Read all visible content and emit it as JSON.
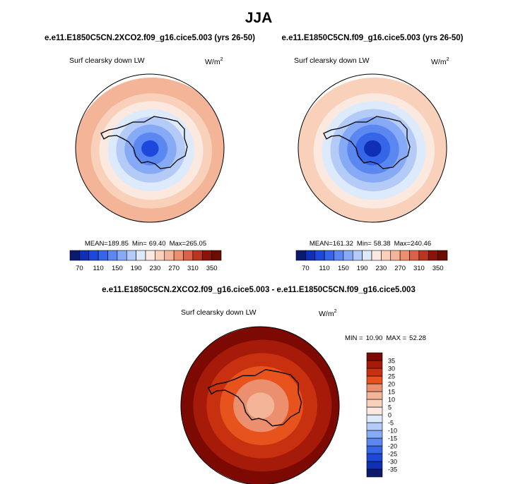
{
  "figure": {
    "season": "JJA",
    "panels": [
      {
        "id": "exp",
        "title": "e.e11.E1850C5CN.2XCO2.f09_g16.cice5.003 (yrs 26-50)",
        "variable": "Surf clearsky down LW",
        "units_base": "W/m",
        "units_exp": "2",
        "stats": {
          "mean_label": "MEAN=",
          "mean": "189.85",
          "min_label": "Min=",
          "min": "69.40",
          "max_label": "Max=",
          "max": "265.05"
        }
      },
      {
        "id": "ctl",
        "title": "e.e11.E1850C5CN.f09_g16.cice5.003 (yrs 26-50)",
        "variable": "Surf clearsky down LW",
        "units_base": "W/m",
        "units_exp": "2",
        "stats": {
          "mean_label": "MEAN=",
          "mean": "161.32",
          "min_label": "Min=",
          "min": "58.38",
          "max_label": "Max=",
          "max": "240.46"
        }
      },
      {
        "id": "diff",
        "title": "e.e11.E1850C5CN.2XCO2.f09_g16.cice5.003 - e.e11.E1850C5CN.f09_g16.cice5.003",
        "variable": "Surf clearsky down LW",
        "units_base": "W/m",
        "units_exp": "2",
        "stats": {
          "min_label": "MIN =",
          "min": "10.90",
          "max_label": "MAX =",
          "max": "52.28"
        }
      }
    ]
  },
  "chart_data": [
    {
      "type": "heatmap",
      "projection": "south-polar-stereographic",
      "title": "e.e11.E1850C5CN.2XCO2.f09_g16.cice5.003 (yrs 26-50)",
      "variable": "Surf clearsky down LW",
      "units": "W/m2",
      "mean": 189.85,
      "min": 69.4,
      "max": 265.05,
      "colorbar": {
        "orientation": "horizontal",
        "levels": [
          70,
          90,
          110,
          130,
          150,
          170,
          190,
          210,
          230,
          250,
          270,
          290,
          310,
          330,
          350
        ],
        "tick_labels": [
          "70",
          "110",
          "150",
          "190",
          "230",
          "270",
          "310",
          "350"
        ],
        "colors": [
          "#0a1a6e",
          "#0f2fb4",
          "#1e48dc",
          "#3566e8",
          "#5a88f0",
          "#86aaf5",
          "#b4cbf8",
          "#ddeafb",
          "#fbe9df",
          "#f9d1bb",
          "#f3b497",
          "#eb8f6e",
          "#d8634a",
          "#b8361f",
          "#8b1408",
          "#6c0d05"
        ]
      },
      "rings_wm2": [
        95,
        130,
        150,
        170,
        190,
        210,
        230,
        250,
        262
      ]
    },
    {
      "type": "heatmap",
      "projection": "south-polar-stereographic",
      "title": "e.e11.E1850C5CN.f09_g16.cice5.003 (yrs 26-50)",
      "variable": "Surf clearsky down LW",
      "units": "W/m2",
      "mean": 161.32,
      "min": 58.38,
      "max": 240.46,
      "colorbar": {
        "orientation": "horizontal",
        "levels": [
          70,
          90,
          110,
          130,
          150,
          170,
          190,
          210,
          230,
          250,
          270,
          290,
          310,
          330,
          350
        ],
        "tick_labels": [
          "70",
          "110",
          "150",
          "190",
          "230",
          "270",
          "310",
          "350"
        ],
        "colors": [
          "#0a1a6e",
          "#0f2fb4",
          "#1e48dc",
          "#3566e8",
          "#5a88f0",
          "#86aaf5",
          "#b4cbf8",
          "#ddeafb",
          "#fbe9df",
          "#f9d1bb",
          "#f3b497",
          "#eb8f6e",
          "#d8634a",
          "#b8361f",
          "#8b1408",
          "#6c0d05"
        ]
      },
      "rings_wm2": [
        70,
        110,
        130,
        150,
        170,
        190,
        210,
        230,
        240
      ]
    },
    {
      "type": "heatmap",
      "projection": "south-polar-stereographic",
      "title": "e.e11.E1850C5CN.2XCO2.f09_g16.cice5.003 - e.e11.E1850C5CN.f09_g16.cice5.003",
      "variable": "Surf clearsky down LW",
      "units": "W/m2",
      "min": 10.9,
      "max": 52.28,
      "colorbar": {
        "orientation": "vertical",
        "levels": [
          -35,
          -30,
          -25,
          -20,
          -15,
          -10,
          -5,
          0,
          5,
          10,
          15,
          20,
          25,
          30,
          35
        ],
        "tick_labels": [
          "-35",
          "-30",
          "-25",
          "-20",
          "-15",
          "-10",
          "-5",
          "0",
          "5",
          "10",
          "15",
          "20",
          "25",
          "30",
          "35"
        ],
        "colors": [
          "#0a1a6e",
          "#0f2fb4",
          "#1e48dc",
          "#3566e8",
          "#5a88f0",
          "#86aaf5",
          "#b4cbf8",
          "#ddeafb",
          "#fbe9df",
          "#f9d1bb",
          "#f3b497",
          "#eb8f6e",
          "#e8521d",
          "#c8300f",
          "#a51a08",
          "#7c0a03"
        ]
      },
      "rings_wm2": [
        12,
        18,
        22,
        27,
        32,
        36
      ]
    }
  ]
}
